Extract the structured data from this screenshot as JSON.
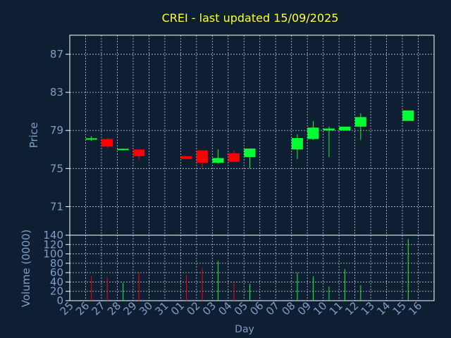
{
  "title": "CREI - last updated 15/09/2025",
  "colors": {
    "background": "#0f1f33",
    "title": "#ffff33",
    "axis_text": "#7d9fc4",
    "axis_line": "#ffffff",
    "up": "#00ff33",
    "down": "#ff0000"
  },
  "chart_data": [
    {
      "type": "candlestick",
      "ylabel": "Price",
      "ylim": [
        68,
        89
      ],
      "yticks": [
        71,
        75,
        79,
        83,
        87
      ],
      "grid": true,
      "x_slots": [
        "25",
        "26",
        "27",
        "28",
        "29",
        "30",
        "31",
        "01",
        "02",
        "03",
        "04",
        "05",
        "06",
        "07",
        "08",
        "09",
        "10",
        "11",
        "12",
        "13",
        "14",
        "15",
        "16"
      ],
      "candles": [
        {
          "x": "26",
          "open": 78.1,
          "close": 78.1,
          "high": 78.4,
          "low": 77.9
        },
        {
          "x": "27",
          "open": 78.1,
          "close": 77.3,
          "high": 78.2,
          "low": 77.2
        },
        {
          "x": "28",
          "open": 77.0,
          "close": 77.0,
          "high": 77.1,
          "low": 76.9
        },
        {
          "x": "29",
          "open": 77.0,
          "close": 76.3,
          "high": 77.0,
          "low": 75.9
        },
        {
          "x": "01",
          "open": 76.3,
          "close": 76.0,
          "high": 76.3,
          "low": 76.0
        },
        {
          "x": "02",
          "open": 76.9,
          "close": 75.6,
          "high": 76.9,
          "low": 75.1
        },
        {
          "x": "03",
          "open": 75.6,
          "close": 76.1,
          "high": 77.0,
          "low": 75.5
        },
        {
          "x": "04",
          "open": 76.6,
          "close": 75.7,
          "high": 76.9,
          "low": 75.7
        },
        {
          "x": "05",
          "open": 76.2,
          "close": 77.1,
          "high": 77.1,
          "low": 75.0
        },
        {
          "x": "08",
          "open": 77.0,
          "close": 78.2,
          "high": 78.6,
          "low": 76.0
        },
        {
          "x": "09",
          "open": 78.1,
          "close": 79.3,
          "high": 80.0,
          "low": 78.0
        },
        {
          "x": "10",
          "open": 79.0,
          "close": 79.2,
          "high": 79.4,
          "low": 76.2
        },
        {
          "x": "11",
          "open": 79.0,
          "close": 79.4,
          "high": 79.4,
          "low": 79.0
        },
        {
          "x": "12",
          "open": 79.4,
          "close": 80.4,
          "high": 80.8,
          "low": 78.0
        },
        {
          "x": "15",
          "open": 80.0,
          "close": 81.1,
          "high": 81.1,
          "low": 80.0
        }
      ]
    },
    {
      "type": "bar",
      "ylabel": "Volume (0000)",
      "xlabel": "Day",
      "ylim": [
        0,
        140
      ],
      "yticks": [
        0,
        20,
        40,
        60,
        80,
        100,
        120,
        140
      ],
      "grid": true,
      "categories": [
        "25",
        "26",
        "27",
        "28",
        "29",
        "30",
        "31",
        "01",
        "02",
        "03",
        "04",
        "05",
        "06",
        "07",
        "08",
        "09",
        "10",
        "11",
        "12",
        "13",
        "14",
        "15",
        "16"
      ],
      "bars": [
        {
          "x": "26",
          "value": 52,
          "direction": "down"
        },
        {
          "x": "27",
          "value": 50,
          "direction": "down"
        },
        {
          "x": "28",
          "value": 38,
          "direction": "up"
        },
        {
          "x": "29",
          "value": 60,
          "direction": "down"
        },
        {
          "x": "01",
          "value": 55,
          "direction": "down"
        },
        {
          "x": "02",
          "value": 70,
          "direction": "down"
        },
        {
          "x": "03",
          "value": 85,
          "direction": "up"
        },
        {
          "x": "04",
          "value": 38,
          "direction": "down"
        },
        {
          "x": "05",
          "value": 36,
          "direction": "up"
        },
        {
          "x": "08",
          "value": 60,
          "direction": "up"
        },
        {
          "x": "09",
          "value": 52,
          "direction": "up"
        },
        {
          "x": "10",
          "value": 30,
          "direction": "up"
        },
        {
          "x": "11",
          "value": 68,
          "direction": "up"
        },
        {
          "x": "12",
          "value": 33,
          "direction": "up"
        },
        {
          "x": "15",
          "value": 132,
          "direction": "up"
        }
      ]
    }
  ]
}
